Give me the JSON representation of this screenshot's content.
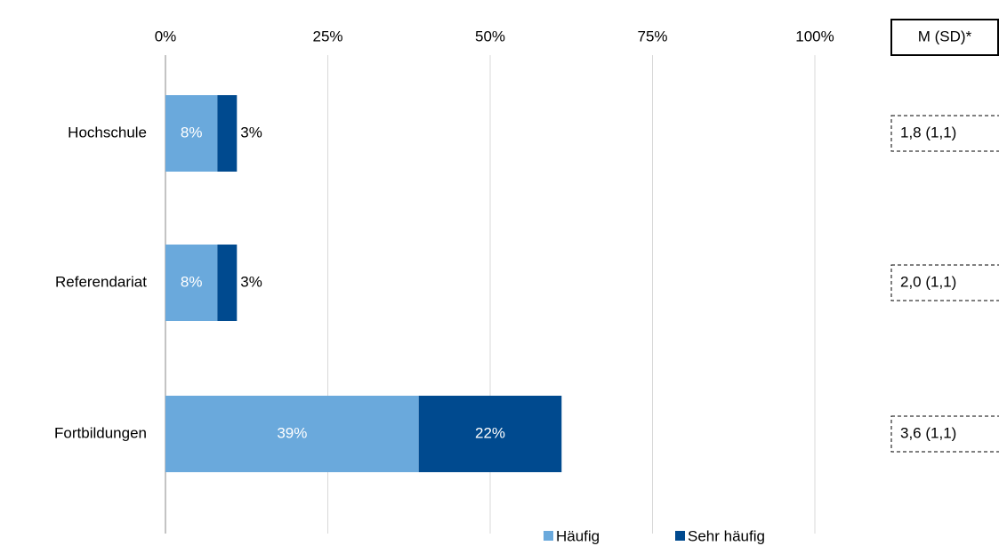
{
  "chart_data": {
    "type": "stacked_barh",
    "categories": [
      "Hochschule",
      "Referendariat",
      "Fortbildungen"
    ],
    "series": [
      {
        "name": "Häufig",
        "color": "#6aa9dc",
        "values": [
          8,
          8,
          39
        ],
        "value_labels": [
          "8%",
          "8%",
          "39%"
        ]
      },
      {
        "name": "Sehr häufig",
        "color": "#004a8f",
        "values": [
          3,
          3,
          22
        ],
        "value_labels": [
          "3%",
          "3%",
          "22%"
        ]
      }
    ],
    "xlim": [
      0,
      100
    ],
    "xticks": [
      {
        "value": 0,
        "label": "0%"
      },
      {
        "value": 25,
        "label": "25%"
      },
      {
        "value": 50,
        "label": "50%"
      },
      {
        "value": 75,
        "label": "75%"
      },
      {
        "value": 100,
        "label": "100%"
      }
    ],
    "grid": true,
    "legend": "bottom",
    "annotations": {
      "header": "M (SD)*",
      "values": [
        "1,8 (1,1)",
        "2,0 (1,1)",
        "3,6 (1,1)"
      ]
    }
  }
}
